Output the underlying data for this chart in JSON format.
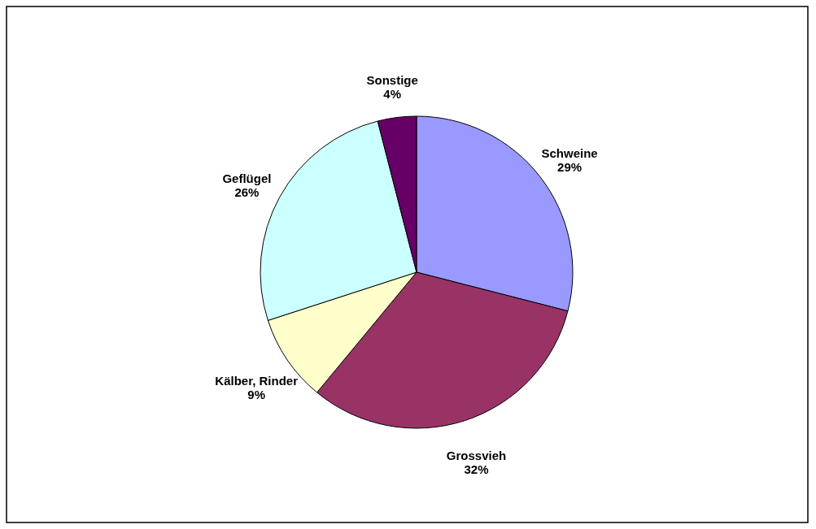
{
  "chart_data": {
    "type": "pie",
    "categories": [
      "Schweine",
      "Grossvieh",
      "Kälber, Rinder",
      "Geflügel",
      "Sonstige"
    ],
    "values": [
      29,
      32,
      9,
      26,
      4
    ],
    "value_labels": [
      "29%",
      "32%",
      "9%",
      "26%",
      "4%"
    ],
    "colors": [
      "#9999ff",
      "#993366",
      "#ffffcc",
      "#ccffff",
      "#660066"
    ]
  }
}
